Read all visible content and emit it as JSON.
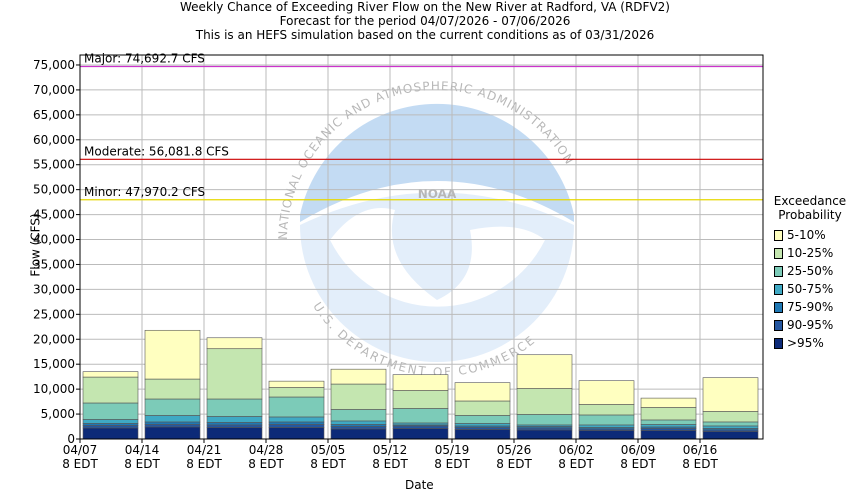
{
  "header": {
    "title_line1": "Weekly Chance of Exceeding River Flow on the New River at Radford, VA (RDFV2)",
    "title_line2": "Forecast for the period 04/07/2026 - 07/06/2026",
    "title_line3": "This is an HEFS simulation based on the current conditions as of 03/31/2026"
  },
  "chart_data": {
    "type": "bar",
    "stacked": true,
    "xlabel": "Date",
    "ylabel": "Flow (CFS)",
    "ylim": [
      0,
      77000
    ],
    "yticks": [
      0,
      5000,
      10000,
      15000,
      20000,
      25000,
      30000,
      35000,
      40000,
      45000,
      50000,
      55000,
      60000,
      65000,
      70000,
      75000
    ],
    "ytick_labels": [
      "0",
      "5,000",
      "10,000",
      "15,000",
      "20,000",
      "25,000",
      "30,000",
      "35,000",
      "40,000",
      "45,000",
      "50,000",
      "55,000",
      "60,000",
      "65,000",
      "70,000",
      "75,000"
    ],
    "grid": true,
    "categories": [
      {
        "date": "04/07",
        "time": "8 EDT"
      },
      {
        "date": "04/14",
        "time": "8 EDT"
      },
      {
        "date": "04/21",
        "time": "8 EDT"
      },
      {
        "date": "04/28",
        "time": "8 EDT"
      },
      {
        "date": "05/05",
        "time": "8 EDT"
      },
      {
        "date": "05/12",
        "time": "8 EDT"
      },
      {
        "date": "05/19",
        "time": "8 EDT"
      },
      {
        "date": "05/26",
        "time": "8 EDT"
      },
      {
        "date": "06/02",
        "time": "8 EDT"
      },
      {
        "date": "06/09",
        "time": "8 EDT"
      },
      {
        "date": "06/16",
        "time": "8 EDT"
      }
    ],
    "thresholds": [
      {
        "label": "Major: 74,692.7 CFS",
        "value": 74692.7,
        "color": "#cc33cc"
      },
      {
        "label": "Moderate: 56,081.8 CFS",
        "value": 56081.8,
        "color": "#cc0000"
      },
      {
        "label": "Minor: 47,970.2 CFS",
        "value": 47970.2,
        "color": "#e6d800"
      }
    ],
    "legend_title_line1": "Exceedance",
    "legend_title_line2": "Probability",
    "legend_position": "right",
    "series": [
      {
        "name": "5-10%",
        "color": "#ffffc0",
        "values": [
          13500,
          21800,
          20300,
          11600,
          14000,
          12900,
          11300,
          16900,
          11700,
          8200,
          12300
        ]
      },
      {
        "name": "10-25%",
        "color": "#c4e6b0",
        "values": [
          12400,
          12000,
          18100,
          10300,
          11000,
          9700,
          7600,
          10100,
          6900,
          6300,
          5500
        ]
      },
      {
        "name": "25-50%",
        "color": "#7ccbb8",
        "values": [
          7200,
          8000,
          8000,
          8400,
          5900,
          6100,
          4700,
          4900,
          4800,
          3800,
          3400
        ]
      },
      {
        "name": "50-75%",
        "color": "#3fa9c4",
        "values": [
          3900,
          4700,
          4500,
          4400,
          3600,
          3200,
          3100,
          2800,
          2800,
          2900,
          2600
        ]
      },
      {
        "name": "75-90%",
        "color": "#1f78b4",
        "values": [
          3100,
          3400,
          3300,
          3400,
          2900,
          2800,
          2600,
          2500,
          2300,
          2400,
          2100
        ]
      },
      {
        "name": "90-95%",
        "color": "#2456a0",
        "values": [
          2700,
          2900,
          2800,
          2900,
          2500,
          2600,
          2300,
          2200,
          2000,
          2100,
          1800
        ]
      },
      {
        "name": ">95%",
        "color": "#0c2a78",
        "values": [
          2200,
          2400,
          2300,
          2300,
          2000,
          2100,
          1900,
          1800,
          1700,
          1700,
          1500
        ]
      }
    ],
    "watermark": {
      "logo_text": "NOAA",
      "ring_text_top": "NATIONAL OCEANIC AND ATMOSPHERIC ADMINISTRATION",
      "ring_text_bottom": "U.S. DEPARTMENT OF COMMERCE"
    }
  }
}
